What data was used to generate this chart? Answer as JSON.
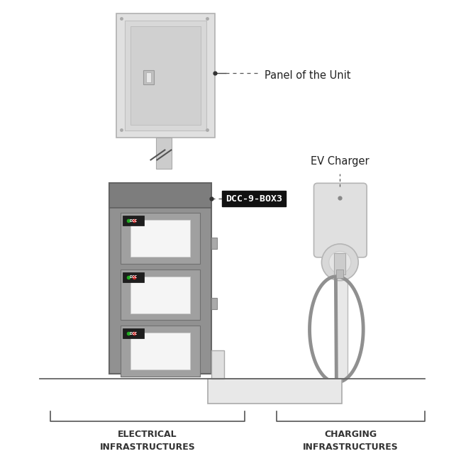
{
  "bg_color": "#ffffff",
  "panel_label": "Panel of the Unit",
  "dcc_label": "DCC-9-BOX3",
  "ev_label": "EV Charger",
  "font_color": "#222222"
}
